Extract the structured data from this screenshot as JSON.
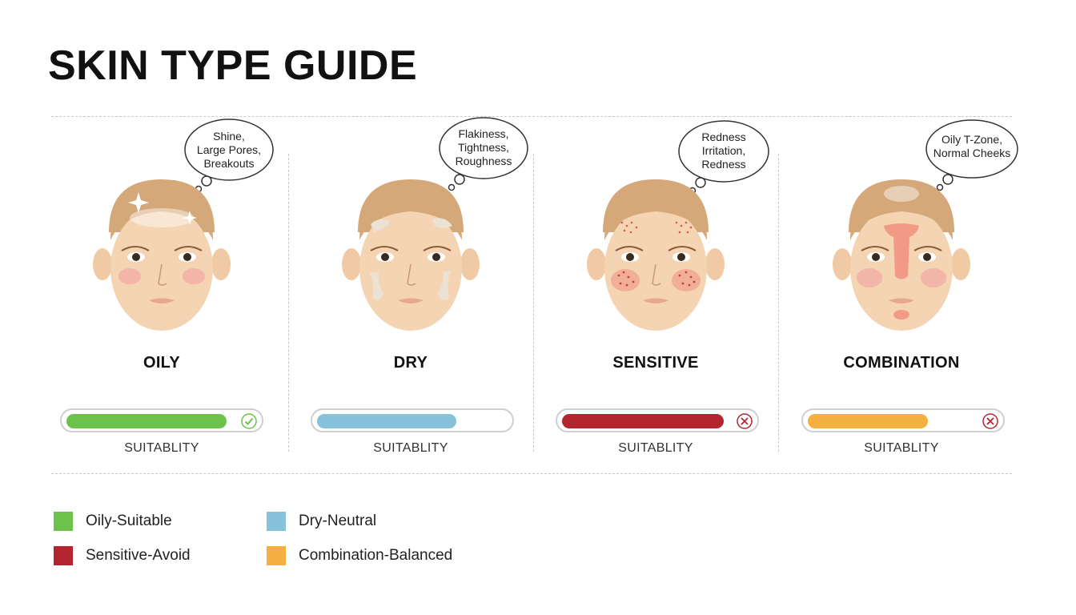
{
  "title": "SKIN TYPE GUIDE",
  "types": [
    {
      "name": "OILY",
      "bubble": [
        "Shine,",
        "Large Pores,",
        "Breakouts"
      ],
      "suitability_label": "SUITABLITY",
      "suitability": 0.82,
      "status": "check-icon",
      "color": "#6cc24a"
    },
    {
      "name": "DRY",
      "bubble": [
        "Flakiness,",
        "Tightness,",
        "Roughness"
      ],
      "suitability_label": "SUITABLITY",
      "suitability": 0.72,
      "status": "none",
      "color": "#86c3db"
    },
    {
      "name": "SENSITIVE",
      "bubble": [
        "Redness",
        "Irritation,",
        "Redness"
      ],
      "suitability_label": "SUITABLITY",
      "suitability": 0.86,
      "status": "x-icon",
      "color": "#b3262f"
    },
    {
      "name": "COMBINATION",
      "bubble": [
        "Oily T-Zone,",
        "Normal Cheeks"
      ],
      "suitability_label": "SUITABLITY",
      "suitability": 0.62,
      "status": "x-icon",
      "color": "#f5b041"
    }
  ],
  "legend": [
    {
      "label": "Oily-Suitable",
      "color": "#6cc24a"
    },
    {
      "label": "Dry-Neutral",
      "color": "#86c3db"
    },
    {
      "label": "Sensitive-Avoid",
      "color": "#b3262f"
    },
    {
      "label": "Combination-Balanced",
      "color": "#f5b041"
    }
  ]
}
